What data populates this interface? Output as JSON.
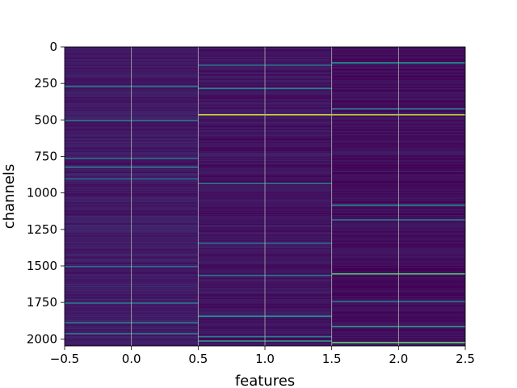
{
  "chart_data": {
    "type": "heatmap",
    "title": "",
    "xlabel": "features",
    "ylabel": "channels",
    "xlim": [
      -0.5,
      2.5
    ],
    "ylim": [
      2048,
      0
    ],
    "x_ticks": [
      -0.5,
      0.0,
      0.5,
      1.0,
      1.5,
      2.0,
      2.5
    ],
    "x_tick_labels": [
      "−0.5",
      "0.0",
      "0.5",
      "1.0",
      "1.5",
      "2.0",
      "2.5"
    ],
    "y_ticks": [
      0,
      250,
      500,
      750,
      1000,
      1250,
      1500,
      1750,
      2000
    ],
    "y_tick_labels": [
      "0",
      "250",
      "500",
      "750",
      "1000",
      "1250",
      "1500",
      "1750",
      "2000"
    ],
    "grid": true,
    "colormap": "viridis",
    "columns": [
      {
        "feature": 0,
        "base": 0.08,
        "highlights": [
          {
            "channel": 265,
            "value": 0.45
          },
          {
            "channel": 500,
            "value": 0.4
          },
          {
            "channel": 760,
            "value": 0.35
          },
          {
            "channel": 820,
            "value": 0.4
          },
          {
            "channel": 900,
            "value": 0.35
          },
          {
            "channel": 1500,
            "value": 0.35
          },
          {
            "channel": 1750,
            "value": 0.4
          },
          {
            "channel": 1885,
            "value": 0.45
          },
          {
            "channel": 1960,
            "value": 0.4
          }
        ]
      },
      {
        "feature": 1,
        "base": 0.06,
        "highlights": [
          {
            "channel": 120,
            "value": 0.4
          },
          {
            "channel": 280,
            "value": 0.45
          },
          {
            "channel": 460,
            "value": 0.95
          },
          {
            "channel": 930,
            "value": 0.45
          },
          {
            "channel": 1340,
            "value": 0.35
          },
          {
            "channel": 1560,
            "value": 0.4
          },
          {
            "channel": 1840,
            "value": 0.5
          },
          {
            "channel": 1980,
            "value": 0.45
          },
          {
            "channel": 2010,
            "value": 0.55
          }
        ]
      },
      {
        "feature": 2,
        "base": 0.04,
        "highlights": [
          {
            "channel": 105,
            "value": 0.5
          },
          {
            "channel": 420,
            "value": 0.45
          },
          {
            "channel": 460,
            "value": 0.9
          },
          {
            "channel": 1080,
            "value": 0.5
          },
          {
            "channel": 1180,
            "value": 0.4
          },
          {
            "channel": 1550,
            "value": 0.7
          },
          {
            "channel": 1740,
            "value": 0.4
          },
          {
            "channel": 1910,
            "value": 0.55
          },
          {
            "channel": 2020,
            "value": 0.75
          }
        ]
      }
    ]
  }
}
